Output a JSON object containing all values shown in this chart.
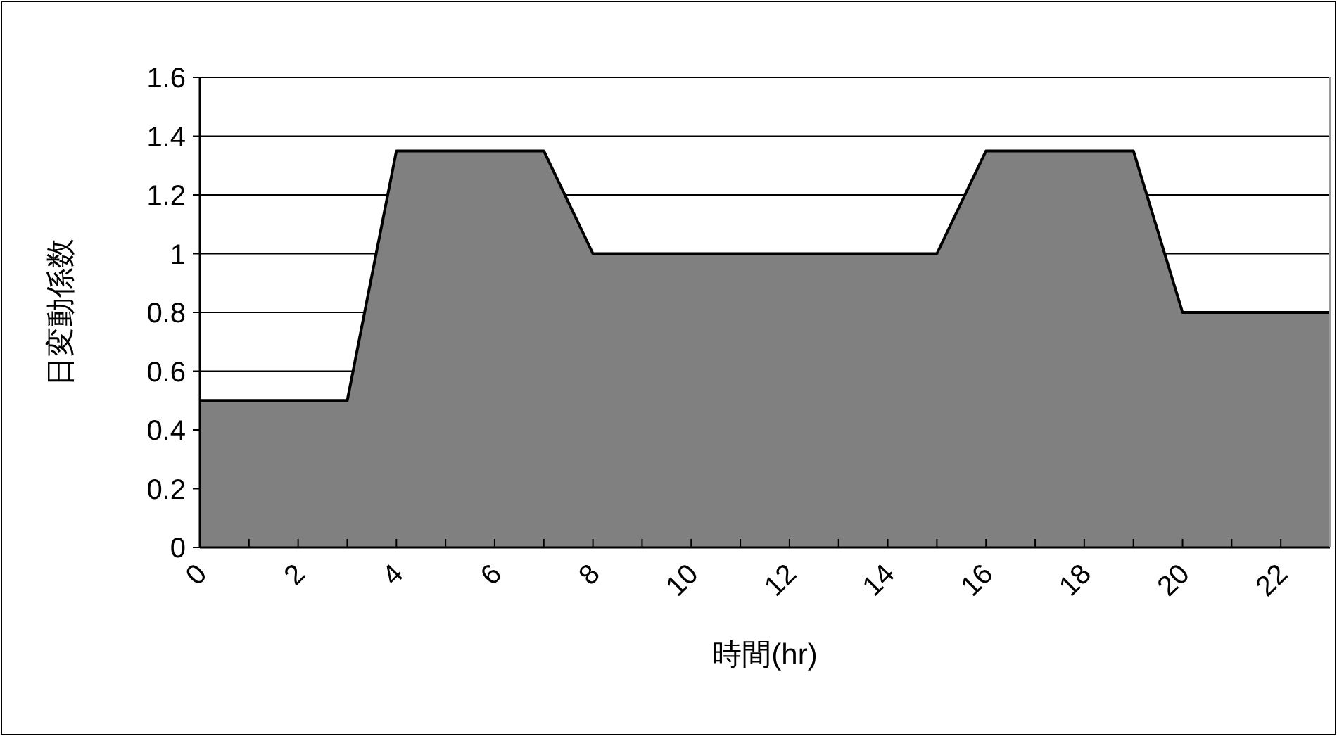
{
  "chart_data": {
    "type": "area",
    "xlabel": "時間(hr)",
    "ylabel": "日変動係数",
    "x": [
      0,
      1,
      2,
      3,
      4,
      5,
      6,
      7,
      8,
      9,
      10,
      11,
      12,
      13,
      14,
      15,
      16,
      17,
      18,
      19,
      20,
      21,
      22,
      23
    ],
    "series": [
      {
        "color": "#808080",
        "values": [
          0.5,
          0.5,
          0.5,
          0.5,
          1.35,
          1.35,
          1.35,
          1.35,
          1,
          1,
          1,
          1,
          1,
          1,
          1,
          1,
          1.35,
          1.35,
          1.35,
          1.35,
          0.8,
          0.8,
          0.8,
          0.8
        ]
      }
    ],
    "xlim": [
      0,
      23
    ],
    "xticks": [
      0,
      {
        "value": 1,
        "label": null
      },
      2,
      {
        "value": 3,
        "label": null
      },
      4,
      {
        "value": 5,
        "label": null
      },
      6,
      {
        "value": 7,
        "label": null
      },
      8,
      {
        "value": 9,
        "label": null
      },
      10,
      {
        "value": 11,
        "label": null
      },
      12,
      {
        "value": 13,
        "label": null
      },
      14,
      {
        "value": 15,
        "label": null
      },
      16,
      {
        "value": 17,
        "label": null
      },
      18,
      {
        "value": 19,
        "label": null
      },
      20,
      {
        "value": 21,
        "label": null
      },
      22,
      {
        "value": 23,
        "label": null
      }
    ],
    "ylim": [
      0,
      1.6
    ],
    "yticks": [
      0,
      0.2,
      0.4,
      0.6,
      0.8,
      1,
      1.2,
      1.4,
      1.6
    ],
    "grid": "y"
  }
}
